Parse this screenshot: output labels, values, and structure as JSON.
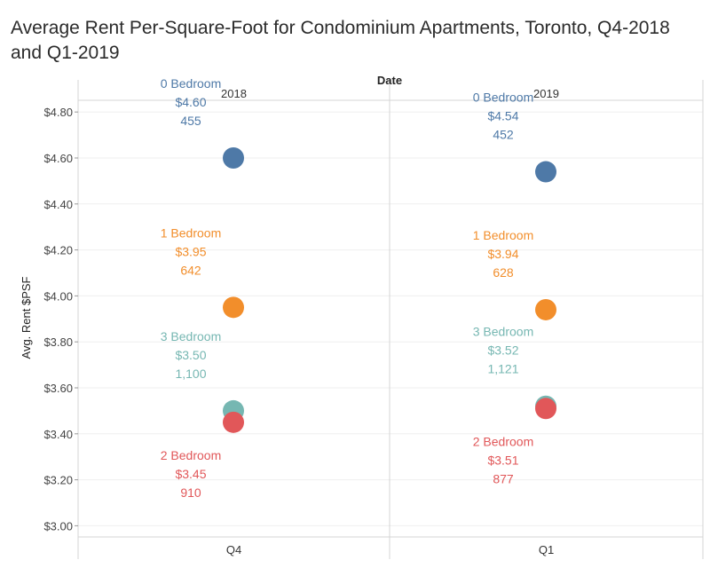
{
  "chart_data": {
    "type": "scatter",
    "title": "Average Rent Per-Square-Foot for Condominium Apartments, Toronto, Q4-2018 and Q1-2019",
    "column_header": "Date",
    "ylabel": "Avg. Rent $PSF",
    "ylim": [
      2.95,
      4.83
    ],
    "y_ticks": [
      "$4.80",
      "$4.60",
      "$4.40",
      "$4.20",
      "$4.00",
      "$3.80",
      "$3.60",
      "$3.40",
      "$3.20",
      "$3.00"
    ],
    "y_tick_values": [
      4.8,
      4.6,
      4.4,
      4.2,
      4.0,
      3.8,
      3.6,
      3.4,
      3.2,
      3.0
    ],
    "panels": [
      {
        "year": "2018",
        "quarter": "Q4"
      },
      {
        "year": "2019",
        "quarter": "Q1"
      }
    ],
    "series": [
      {
        "name": "0 Bedroom",
        "color": "#4e79a7",
        "points": [
          {
            "panel": 0,
            "value": 4.6,
            "value_label": "$4.60",
            "count": "455",
            "label_pos": "above"
          },
          {
            "panel": 1,
            "value": 4.54,
            "value_label": "$4.54",
            "count": "452",
            "label_pos": "above"
          }
        ]
      },
      {
        "name": "1 Bedroom",
        "color": "#f28e2b",
        "points": [
          {
            "panel": 0,
            "value": 3.95,
            "value_label": "$3.95",
            "count": "642",
            "label_pos": "above"
          },
          {
            "panel": 1,
            "value": 3.94,
            "value_label": "$3.94",
            "count": "628",
            "label_pos": "above"
          }
        ]
      },
      {
        "name": "3 Bedroom",
        "color": "#76b7b2",
        "points": [
          {
            "panel": 0,
            "value": 3.5,
            "value_label": "$3.50",
            "count": "1,100",
            "label_pos": "above"
          },
          {
            "panel": 1,
            "value": 3.52,
            "value_label": "$3.52",
            "count": "1,121",
            "label_pos": "above"
          }
        ]
      },
      {
        "name": "2 Bedroom",
        "color": "#e15759",
        "points": [
          {
            "panel": 0,
            "value": 3.45,
            "value_label": "$3.45",
            "count": "910",
            "label_pos": "below"
          },
          {
            "panel": 1,
            "value": 3.51,
            "value_label": "$3.51",
            "count": "877",
            "label_pos": "below"
          }
        ]
      }
    ]
  }
}
